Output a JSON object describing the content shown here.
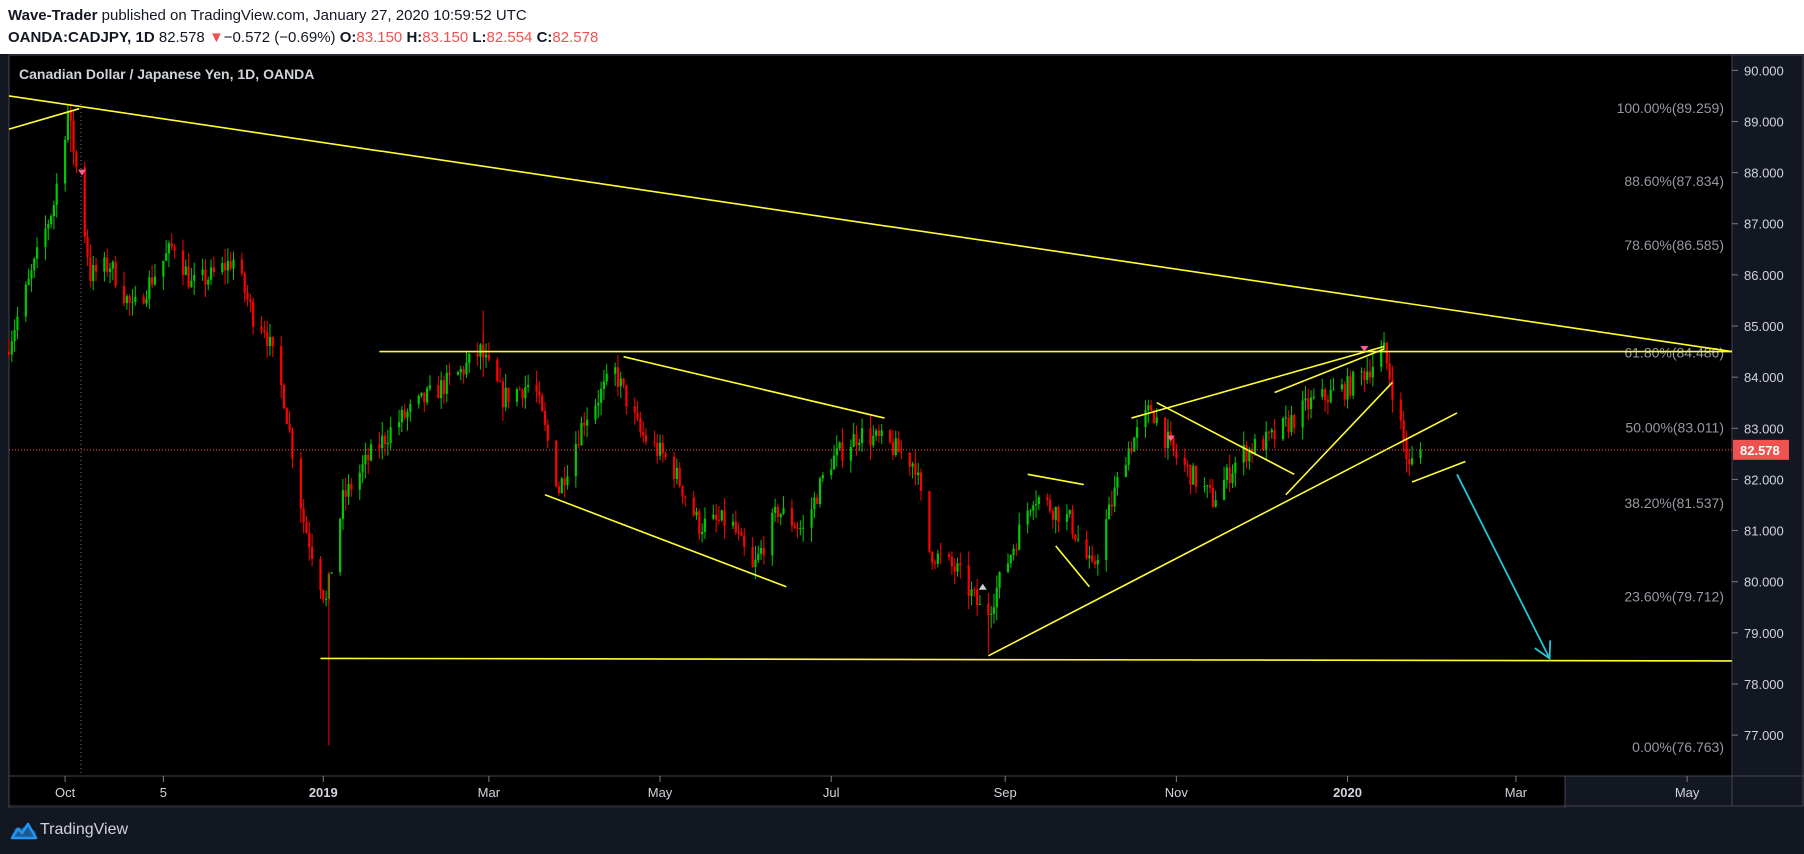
{
  "header": {
    "author": "Wave-Trader",
    "published": "published on TradingView.com, January 27, 2020 10:59:52 UTC",
    "symbol": "OANDA:CADJPY, 1D",
    "last": "82.578",
    "change_arrow": "▼",
    "change": "−0.572 (−0.69%)",
    "o_label": "O:",
    "o_val": "83.150",
    "h_label": "H:",
    "h_val": "83.150",
    "l_label": "L:",
    "l_val": "82.554",
    "c_label": "C:",
    "c_val": "82.578"
  },
  "footer": {
    "brand": "TradingView",
    "logo_icon": "tradingview-cloud-icon"
  },
  "colors": {
    "background": "#000000",
    "up": "#00c805",
    "down": "#ff0000",
    "drawing": "#ffff33",
    "arrow": "#26c6da",
    "price_label": "#ef5350"
  },
  "chart_data": {
    "type": "candlestick",
    "title": "Canadian Dollar / Japanese Yen, 1D, OANDA",
    "xlabel": "",
    "ylabel": "",
    "ylim": [
      76.2,
      90.3
    ],
    "x_range": [
      "2018-09-11",
      "2020-05-17"
    ],
    "yticks": [
      "90.000",
      "89.000",
      "88.000",
      "87.000",
      "86.000",
      "85.000",
      "84.000",
      "83.000",
      "82.000",
      "81.000",
      "80.000",
      "79.000",
      "78.000",
      "77.000"
    ],
    "xticks": [
      {
        "label": "Oct",
        "date": "2018-10-01"
      },
      {
        "label": "5",
        "date": "2018-11-05"
      },
      {
        "label": "2019",
        "date": "2019-01-01"
      },
      {
        "label": "Mar",
        "date": "2019-03-01"
      },
      {
        "label": "May",
        "date": "2019-05-01"
      },
      {
        "label": "Jul",
        "date": "2019-07-01"
      },
      {
        "label": "Sep",
        "date": "2019-09-01"
      },
      {
        "label": "Nov",
        "date": "2019-11-01"
      },
      {
        "label": "2020",
        "date": "2020-01-01"
      },
      {
        "label": "Mar",
        "date": "2020-03-01"
      },
      {
        "label": "May",
        "date": "2020-05-01"
      }
    ],
    "last_price": 82.578,
    "last_price_label": "82.578",
    "price_path": [
      [
        "2018-09-11",
        84.5
      ],
      [
        "2018-09-20",
        86.0
      ],
      [
        "2018-09-28",
        87.4
      ],
      [
        "2018-10-03",
        89.2
      ],
      [
        "2018-10-06",
        88.1
      ],
      [
        "2018-10-11",
        86.0
      ],
      [
        "2018-10-18",
        86.2
      ],
      [
        "2018-10-26",
        85.3
      ],
      [
        "2018-11-05",
        86.2
      ],
      [
        "2018-11-10",
        86.6
      ],
      [
        "2018-11-16",
        85.8
      ],
      [
        "2018-11-24",
        86.0
      ],
      [
        "2018-12-01",
        86.3
      ],
      [
        "2018-12-08",
        85.2
      ],
      [
        "2018-12-12",
        85.0
      ],
      [
        "2018-12-19",
        83.6
      ],
      [
        "2018-12-26",
        81.2
      ],
      [
        "2019-01-01",
        80.0
      ],
      [
        "2019-01-03",
        79.6
      ],
      [
        "2019-01-09",
        81.6
      ],
      [
        "2019-01-18",
        82.4
      ],
      [
        "2019-01-28",
        83.1
      ],
      [
        "2019-02-08",
        83.6
      ],
      [
        "2019-02-18",
        84.0
      ],
      [
        "2019-02-27",
        84.5
      ],
      [
        "2019-03-07",
        83.6
      ],
      [
        "2019-03-18",
        83.9
      ],
      [
        "2019-03-27",
        81.8
      ],
      [
        "2019-04-05",
        83.2
      ],
      [
        "2019-04-16",
        84.1
      ],
      [
        "2019-04-25",
        82.9
      ],
      [
        "2019-05-06",
        82.3
      ],
      [
        "2019-05-16",
        81.1
      ],
      [
        "2019-05-27",
        81.2
      ],
      [
        "2019-06-04",
        80.2
      ],
      [
        "2019-06-13",
        81.4
      ],
      [
        "2019-06-22",
        81.0
      ],
      [
        "2019-07-01",
        82.3
      ],
      [
        "2019-07-12",
        82.9
      ],
      [
        "2019-07-22",
        82.7
      ],
      [
        "2019-08-01",
        82.3
      ],
      [
        "2019-08-06",
        80.6
      ],
      [
        "2019-08-16",
        80.2
      ],
      [
        "2019-08-26",
        79.3
      ],
      [
        "2019-09-05",
        80.7
      ],
      [
        "2019-09-12",
        81.7
      ],
      [
        "2019-09-25",
        81.2
      ],
      [
        "2019-10-03",
        80.2
      ],
      [
        "2019-10-15",
        82.5
      ],
      [
        "2019-10-24",
        83.4
      ],
      [
        "2019-11-01",
        82.5
      ],
      [
        "2019-11-15",
        81.6
      ],
      [
        "2019-11-25",
        82.5
      ],
      [
        "2019-12-06",
        82.8
      ],
      [
        "2019-12-20",
        83.5
      ],
      [
        "2020-01-02",
        83.8
      ],
      [
        "2020-01-10",
        84.2
      ],
      [
        "2020-01-15",
        84.5
      ],
      [
        "2020-01-20",
        83.3
      ],
      [
        "2020-01-24",
        82.2
      ],
      [
        "2020-01-27",
        82.578
      ]
    ],
    "fib_levels": [
      {
        "label": "100.00%(89.259)",
        "value": 89.259
      },
      {
        "label": "88.60%(87.834)",
        "value": 87.834
      },
      {
        "label": "78.60%(86.585)",
        "value": 86.585
      },
      {
        "label": "61.80%(84.486)",
        "value": 84.486
      },
      {
        "label": "50.00%(83.011)",
        "value": 83.011
      },
      {
        "label": "38.20%(81.537)",
        "value": 81.537
      },
      {
        "label": "23.60%(79.712)",
        "value": 79.712
      },
      {
        "label": "0.00%(76.763)",
        "value": 76.763
      }
    ],
    "drawn_lines": [
      {
        "from": [
          "2018-09-11",
          89.5
        ],
        "to": [
          "2020-05-17",
          84.5
        ]
      },
      {
        "from": [
          "2018-09-11",
          88.85
        ],
        "to": [
          "2018-10-06",
          89.25
        ]
      },
      {
        "from": [
          "2019-01-21",
          84.5
        ],
        "to": [
          "2020-05-17",
          84.5
        ]
      },
      {
        "from": [
          "2018-12-31",
          78.5
        ],
        "to": [
          "2020-05-17",
          78.45
        ]
      },
      {
        "from": [
          "2019-04-18",
          84.4
        ],
        "to": [
          "2019-07-20",
          83.2
        ]
      },
      {
        "from": [
          "2019-03-21",
          81.7
        ],
        "to": [
          "2019-06-15",
          79.9
        ]
      },
      {
        "from": [
          "2019-09-09",
          82.1
        ],
        "to": [
          "2019-09-29",
          81.9
        ]
      },
      {
        "from": [
          "2019-09-19",
          80.7
        ],
        "to": [
          "2019-10-01",
          79.9
        ]
      },
      {
        "from": [
          "2019-10-16",
          83.2
        ],
        "to": [
          "2020-01-14",
          84.6
        ]
      },
      {
        "from": [
          "2019-10-25",
          83.5
        ],
        "to": [
          "2019-12-13",
          82.1
        ]
      },
      {
        "from": [
          "2019-12-06",
          83.7
        ],
        "to": [
          "2020-01-14",
          84.55
        ]
      },
      {
        "from": [
          "2019-12-10",
          81.7
        ],
        "to": [
          "2020-01-17",
          83.9
        ]
      },
      {
        "from": [
          "2019-08-26",
          78.55
        ],
        "to": [
          "2020-02-09",
          83.3
        ]
      },
      {
        "from": [
          "2020-01-24",
          81.95
        ],
        "to": [
          "2020-02-12",
          82.35
        ]
      }
    ],
    "forecast_arrow": {
      "from": [
        "2020-02-09",
        82.1
      ],
      "to": [
        "2020-03-13",
        78.5
      ]
    }
  }
}
